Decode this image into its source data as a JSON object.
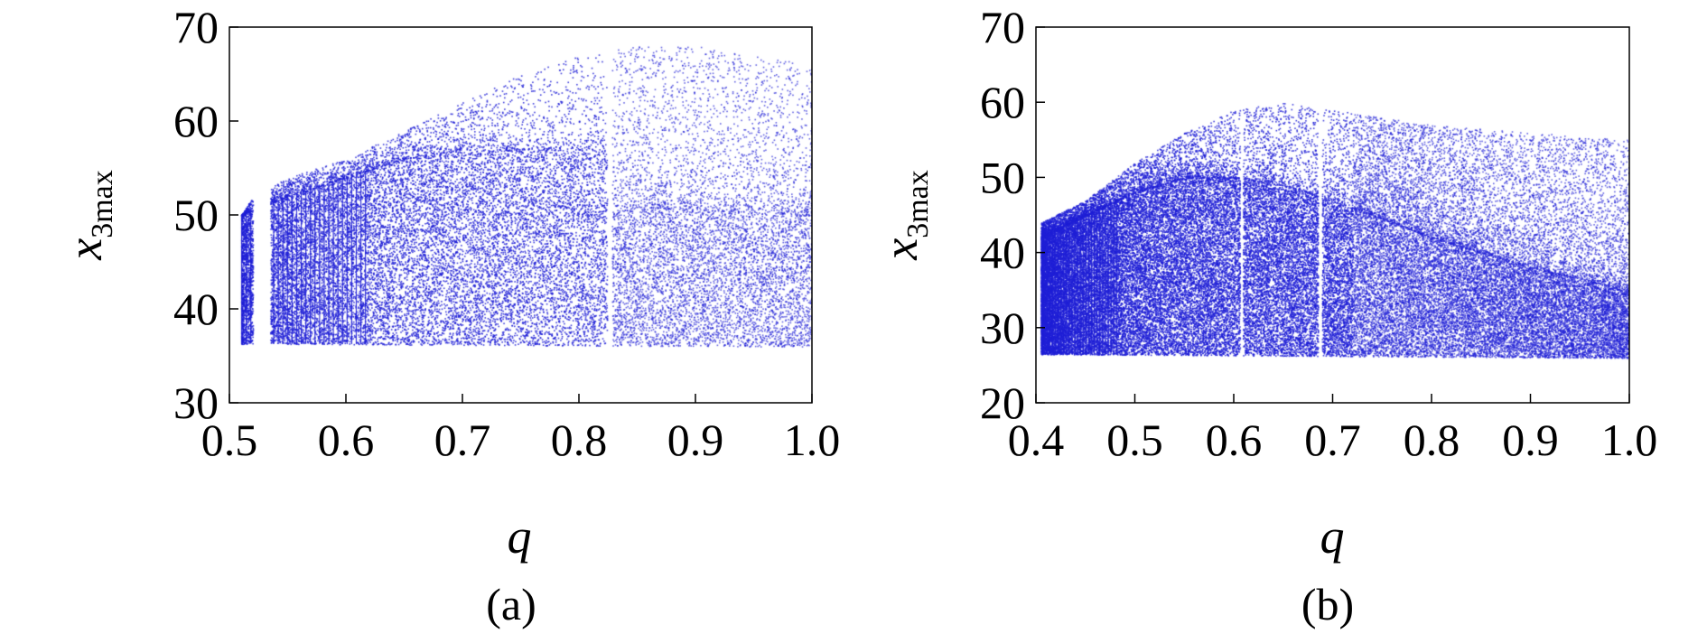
{
  "chart_data": [
    {
      "type": "scatter",
      "panel_label": "(a)",
      "xlabel": "q",
      "ylabel_main": "x",
      "ylabel_sub": "3max",
      "xlim": [
        0.5,
        1.0
      ],
      "ylim": [
        30,
        70
      ],
      "xticks": [
        "0.5",
        "0.6",
        "0.7",
        "0.8",
        "0.9",
        "1.0"
      ],
      "yticks": [
        "30",
        "40",
        "50",
        "60",
        "70"
      ],
      "grid": false,
      "marker_color": "#1f1fd6",
      "x_start": 0.51,
      "floor": [
        [
          0.51,
          36.3
        ],
        [
          1.0,
          36.0
        ]
      ],
      "upper_envelope": [
        [
          0.51,
          50
        ],
        [
          0.52,
          52
        ],
        [
          0.55,
          54
        ],
        [
          0.6,
          56
        ],
        [
          0.65,
          59
        ],
        [
          0.7,
          62
        ],
        [
          0.75,
          65
        ],
        [
          0.8,
          67
        ],
        [
          0.85,
          68
        ],
        [
          0.9,
          68
        ],
        [
          1.0,
          66
        ]
      ],
      "dense_band_upper": [
        [
          0.51,
          50
        ],
        [
          0.55,
          52
        ],
        [
          0.6,
          54
        ],
        [
          0.65,
          56
        ],
        [
          0.7,
          57
        ],
        [
          0.8,
          57
        ],
        [
          0.82,
          58
        ],
        [
          0.83,
          51
        ],
        [
          1.0,
          50
        ]
      ],
      "gaps": [
        [
          0.52,
          0.535
        ],
        [
          0.824,
          0.828
        ]
      ],
      "dense_until": 0.825
    },
    {
      "type": "scatter",
      "panel_label": "(b)",
      "xlabel": "q",
      "ylabel_main": "x",
      "ylabel_sub": "3max",
      "xlim": [
        0.4,
        1.0
      ],
      "ylim": [
        20,
        70
      ],
      "xticks": [
        "0.4",
        "0.5",
        "0.6",
        "0.7",
        "0.8",
        "0.9",
        "1.0"
      ],
      "yticks": [
        "20",
        "30",
        "40",
        "50",
        "60",
        "70"
      ],
      "grid": false,
      "marker_color": "#1f1fd6",
      "x_start": 0.405,
      "floor": [
        [
          0.405,
          26.5
        ],
        [
          1.0,
          26.0
        ]
      ],
      "upper_envelope": [
        [
          0.405,
          44
        ],
        [
          0.45,
          47
        ],
        [
          0.5,
          52
        ],
        [
          0.55,
          56
        ],
        [
          0.6,
          59
        ],
        [
          0.65,
          60
        ],
        [
          0.7,
          59
        ],
        [
          0.8,
          57
        ],
        [
          0.9,
          56
        ],
        [
          1.0,
          55
        ]
      ],
      "dense_band_upper": [
        [
          0.405,
          42
        ],
        [
          0.45,
          45
        ],
        [
          0.5,
          48
        ],
        [
          0.55,
          50
        ],
        [
          0.6,
          50
        ],
        [
          0.65,
          49
        ],
        [
          0.7,
          47
        ],
        [
          0.8,
          42
        ],
        [
          0.9,
          38
        ],
        [
          1.0,
          35
        ]
      ],
      "gaps": [
        [
          0.606,
          0.609
        ],
        [
          0.685,
          0.689
        ]
      ],
      "dense_until": 0.72
    }
  ]
}
